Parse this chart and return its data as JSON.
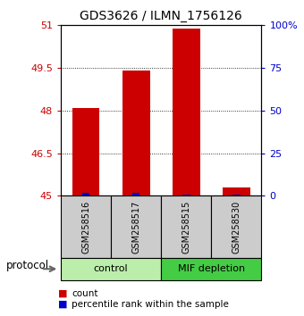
{
  "title": "GDS3626 / ILMN_1756126",
  "samples": [
    "GSM258516",
    "GSM258517",
    "GSM258515",
    "GSM258530"
  ],
  "counts": [
    48.1,
    49.4,
    50.9,
    45.3
  ],
  "percentile_ranks": [
    2,
    2,
    1,
    1
  ],
  "y_min": 45,
  "y_max": 51,
  "y_ticks": [
    45,
    46.5,
    48,
    49.5,
    51
  ],
  "y_tick_labels": [
    "45",
    "46.5",
    "48",
    "49.5",
    "51"
  ],
  "right_y_ticks": [
    0,
    25,
    50,
    75,
    100
  ],
  "right_y_tick_labels": [
    "0",
    "25",
    "50",
    "75",
    "100%"
  ],
  "bar_color": "#cc0000",
  "percentile_color": "#0000cc",
  "groups": [
    {
      "label": "control",
      "color": "#bbeeaa",
      "start": 0,
      "end": 2
    },
    {
      "label": "MIF depletion",
      "color": "#44cc44",
      "start": 2,
      "end": 4
    }
  ],
  "protocol_label": "protocol",
  "bar_width": 0.55,
  "sample_box_color": "#cccccc",
  "left_tick_color": "#cc0000",
  "right_tick_color": "#0000cc",
  "legend_items": [
    {
      "color": "#cc0000",
      "label": "count"
    },
    {
      "color": "#0000cc",
      "label": "percentile rank within the sample"
    }
  ]
}
